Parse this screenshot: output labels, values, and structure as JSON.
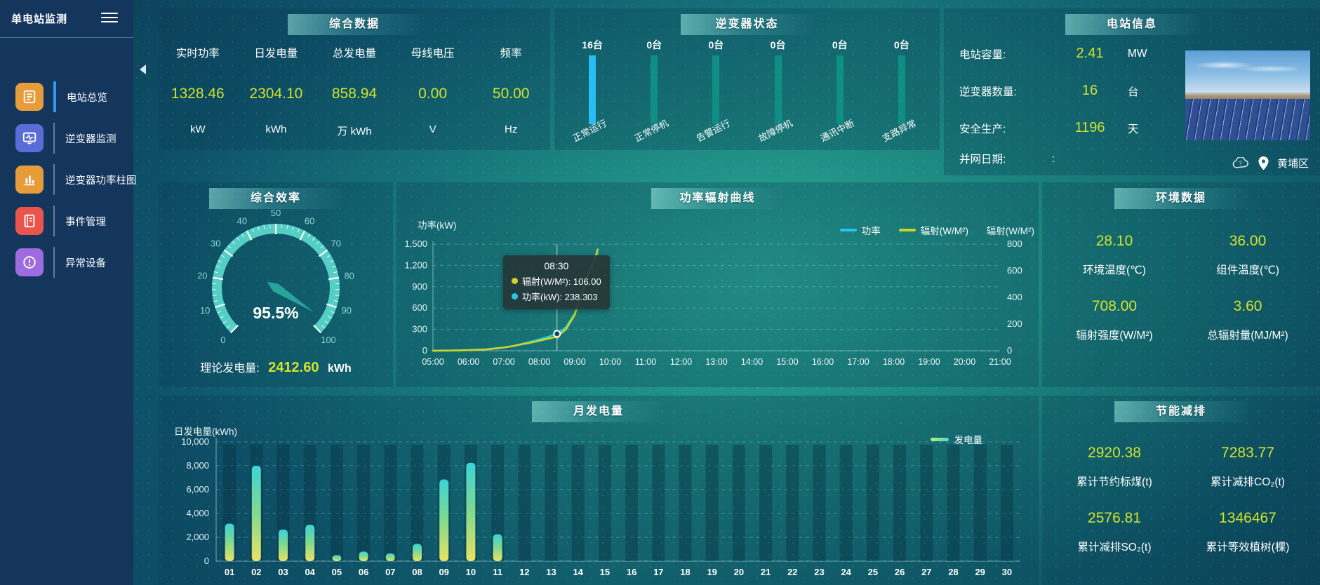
{
  "app": {
    "title": "单电站监测"
  },
  "sidebar": {
    "items": [
      {
        "label": "电站总览",
        "icon": "overview",
        "color": "#e79c3c",
        "active": true
      },
      {
        "label": "逆变器监测",
        "icon": "monitor",
        "color": "#5a6cd8",
        "active": false
      },
      {
        "label": "逆变器功率柱图",
        "icon": "bars",
        "color": "#e79c3c",
        "active": false
      },
      {
        "label": "事件管理",
        "icon": "events",
        "color": "#e9554d",
        "active": false
      },
      {
        "label": "异常设备",
        "icon": "abnormal",
        "color": "#9e6ce0",
        "active": false
      }
    ]
  },
  "colors": {
    "value_yellow": "#cfe32d",
    "power_line": "#2fc8d8",
    "radiation_line": "#ccd32b",
    "inverter_highlight": "#27bdf2",
    "inverter_normal": "#0f8e86"
  },
  "panels": {
    "summary": {
      "title": "综合数据",
      "metrics": [
        {
          "label": "实时功率",
          "value": "1328.46",
          "unit": "kW"
        },
        {
          "label": "日发电量",
          "value": "2304.10",
          "unit": "kWh"
        },
        {
          "label": "总发电量",
          "value": "858.94",
          "unit": "万 kWh"
        },
        {
          "label": "母线电压",
          "value": "0.00",
          "unit": "V"
        },
        {
          "label": "频率",
          "value": "50.00",
          "unit": "Hz"
        }
      ]
    },
    "inverter_status": {
      "title": "逆变器状态",
      "columns": [
        {
          "count": "16台",
          "label": "正常运行",
          "highlight": true
        },
        {
          "count": "0台",
          "label": "正常停机",
          "highlight": false
        },
        {
          "count": "0台",
          "label": "告警运行",
          "highlight": false
        },
        {
          "count": "0台",
          "label": "故障停机",
          "highlight": false
        },
        {
          "count": "0台",
          "label": "通讯中断",
          "highlight": false
        },
        {
          "count": "0台",
          "label": "支路异常",
          "highlight": false
        }
      ]
    },
    "station_info": {
      "title": "电站信息",
      "rows": [
        {
          "label": "电站容量:",
          "value": "2.41",
          "unit": "MW"
        },
        {
          "label": "逆变器数量:",
          "value": "16",
          "unit": "台"
        },
        {
          "label": "安全生产:",
          "value": "1196",
          "unit": "天"
        },
        {
          "label": "并网日期: ",
          "value": ":",
          "unit": ""
        }
      ],
      "location": "黄埔区"
    },
    "efficiency": {
      "title": "综合效率",
      "gauge": {
        "min": 0,
        "max": 100,
        "value": 95.5,
        "display": "95.5%",
        "tick_labels": [
          "0",
          "10",
          "20",
          "30",
          "40",
          "50",
          "60",
          "70",
          "80",
          "90",
          "100"
        ],
        "color": "#55cfc6"
      },
      "theory_label": "理论发电量:",
      "theory_value": "2412.60",
      "theory_unit": "kWh"
    },
    "env_data": {
      "title": "环境数据",
      "cells": [
        {
          "value": "28.10",
          "label": "环境温度(℃)"
        },
        {
          "value": "36.00",
          "label": "组件温度(℃)"
        },
        {
          "value": "708.00",
          "label": "辐射强度(W/M²)"
        },
        {
          "value": "3.60",
          "label": "总辐射量(MJ/M²)"
        }
      ]
    },
    "energy_saving": {
      "title": "节能减排",
      "cells": [
        {
          "value": "2920.38",
          "label": "累计节约标煤(t)"
        },
        {
          "value": "7283.77",
          "label": "累计减排CO₂(t)"
        },
        {
          "value": "2576.81",
          "label": "累计减排SO₂(t)"
        },
        {
          "value": "1346467",
          "label": "累计等效植树(棵)"
        }
      ]
    }
  },
  "chart_data": [
    {
      "id": "power_radiation",
      "type": "line",
      "title": "功率辐射曲线",
      "grid": "dashed-horizontal",
      "legend_position": "top-right",
      "x_ticks": [
        "05:00",
        "06:00",
        "07:00",
        "08:00",
        "09:00",
        "10:00",
        "11:00",
        "12:00",
        "13:00",
        "14:00",
        "15:00",
        "16:00",
        "17:00",
        "18:00",
        "19:00",
        "20:00",
        "21:00"
      ],
      "x_range": [
        5,
        21
      ],
      "left_axis": {
        "name": "功率(kW)",
        "min": 0,
        "max": 1500,
        "tick_labels": [
          "1,500",
          "1,200",
          "900",
          "600",
          "300",
          "0"
        ]
      },
      "right_axis": {
        "name": "辐射(W/M²)",
        "min": 0,
        "max": 800,
        "tick_labels": [
          "800",
          "600",
          "400",
          "200",
          "0"
        ]
      },
      "legend": [
        {
          "label": "功率",
          "color": "#29c3ef"
        },
        {
          "label": "辐射(W/M²)",
          "color": "#ccd32b"
        }
      ],
      "series": [
        {
          "name": "功率",
          "axis": "left",
          "color": "#2fd0c8",
          "x": [
            5,
            5.5,
            6,
            6.5,
            7,
            7.25,
            7.5,
            7.75,
            8,
            8.25,
            8.5,
            8.75,
            9,
            9.2,
            9.4,
            9.55,
            9.65
          ],
          "y": [
            2,
            3,
            8,
            18,
            45,
            65,
            95,
            125,
            160,
            195,
            238.3,
            330,
            520,
            800,
            1100,
            1280,
            1380
          ]
        },
        {
          "name": "辐射(W/M²)",
          "axis": "right",
          "color": "#ccd32b",
          "x": [
            5,
            5.5,
            6,
            6.5,
            7,
            7.25,
            7.5,
            7.75,
            8,
            8.25,
            8.5,
            8.75,
            9,
            9.2,
            9.4,
            9.55,
            9.65
          ],
          "y": [
            0,
            1,
            4,
            10,
            24,
            34,
            48,
            60,
            75,
            90,
            106,
            160,
            270,
            430,
            580,
            680,
            760
          ]
        }
      ],
      "tooltip": {
        "time": "08:30",
        "x": 8.5,
        "rows": [
          {
            "dot": "#ccd32b",
            "text": "辐射(W/M²): 106.00"
          },
          {
            "dot": "#29c3ef",
            "text": "功率(kW): 238.303"
          }
        ]
      }
    },
    {
      "id": "monthly_energy",
      "type": "bar",
      "title": "月发电量",
      "ylabel": "日发电量(kWh)",
      "ylim": [
        0,
        10000
      ],
      "y_tick_labels": [
        "10,000",
        "8,000",
        "6,000",
        "4,000",
        "2,000",
        "0"
      ],
      "categories": [
        "01",
        "02",
        "03",
        "04",
        "05",
        "06",
        "07",
        "08",
        "09",
        "10",
        "11",
        "12",
        "13",
        "14",
        "15",
        "16",
        "17",
        "18",
        "19",
        "20",
        "21",
        "22",
        "23",
        "24",
        "25",
        "26",
        "27",
        "28",
        "29",
        "30"
      ],
      "values": [
        3150,
        8000,
        2650,
        3050,
        500,
        800,
        650,
        1450,
        6850,
        8250,
        2250,
        0,
        0,
        0,
        0,
        0,
        0,
        0,
        0,
        0,
        0,
        0,
        0,
        0,
        0,
        0,
        0,
        0,
        0,
        0
      ],
      "legend": [
        {
          "label": "发电量",
          "color": "#6fdfa8"
        }
      ]
    }
  ]
}
